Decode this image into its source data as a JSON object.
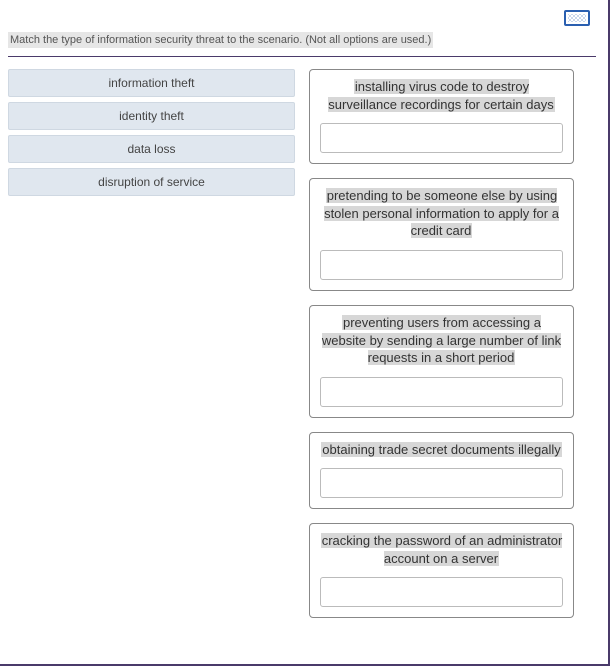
{
  "instruction": "Match the type of information security threat to the scenario. (Not all options are used.)",
  "options": [
    {
      "label": "information theft"
    },
    {
      "label": "identity theft"
    },
    {
      "label": "data loss"
    },
    {
      "label": "disruption of service"
    }
  ],
  "scenarios": [
    {
      "text": "installing virus code to destroy surveillance recordings for certain days"
    },
    {
      "text": "pretending to be someone else by using stolen personal information to apply for a credit card"
    },
    {
      "text": "preventing users from accessing a website by sending a large number of link requests in a short period"
    },
    {
      "text": "obtaining trade secret documents illegally"
    },
    {
      "text": "cracking the password of an administrator account on a server"
    }
  ],
  "colors": {
    "option_bg": "#e0e7ef",
    "highlight": "#d7d7d7",
    "border": "#888",
    "accent": "#4a3a6a"
  }
}
